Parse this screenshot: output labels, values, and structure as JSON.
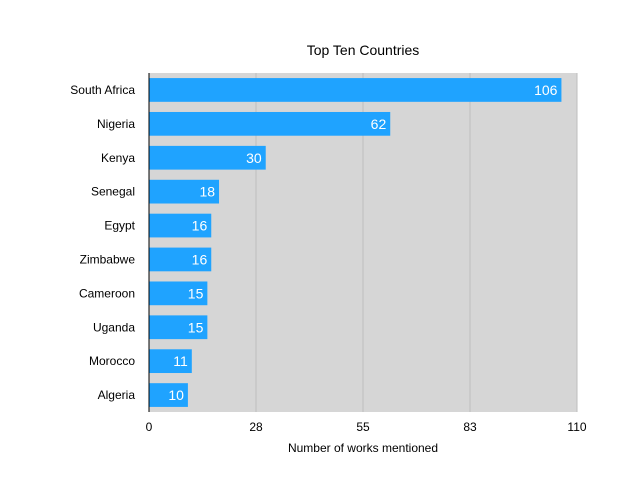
{
  "chart_data": {
    "type": "bar",
    "orientation": "horizontal",
    "title": "Top Ten Countries",
    "xlabel": "Number of works mentioned",
    "ylabel": "",
    "categories": [
      "South Africa",
      "Nigeria",
      "Kenya",
      "Senegal",
      "Egypt",
      "Zimbabwe",
      "Cameroon",
      "Uganda",
      "Morocco",
      "Algeria"
    ],
    "values": [
      106,
      62,
      30,
      18,
      16,
      16,
      15,
      15,
      11,
      10
    ],
    "data_labels": [
      "106",
      "62",
      "30",
      "18",
      "16",
      "16",
      "15",
      "15",
      "11",
      "10"
    ],
    "xlim": [
      0,
      110
    ],
    "xticks": [
      0,
      27.5,
      55,
      82.5,
      110
    ],
    "xtick_labels": [
      "0",
      "28",
      "55",
      "83",
      "110"
    ],
    "grid": "vertical",
    "legend": "none",
    "colors": {
      "bar": "#1fa3ff",
      "plot_background": "#d6d6d6",
      "gridline": "#bdbdbd",
      "axis": "#000000",
      "data_label": "#ffffff"
    }
  }
}
